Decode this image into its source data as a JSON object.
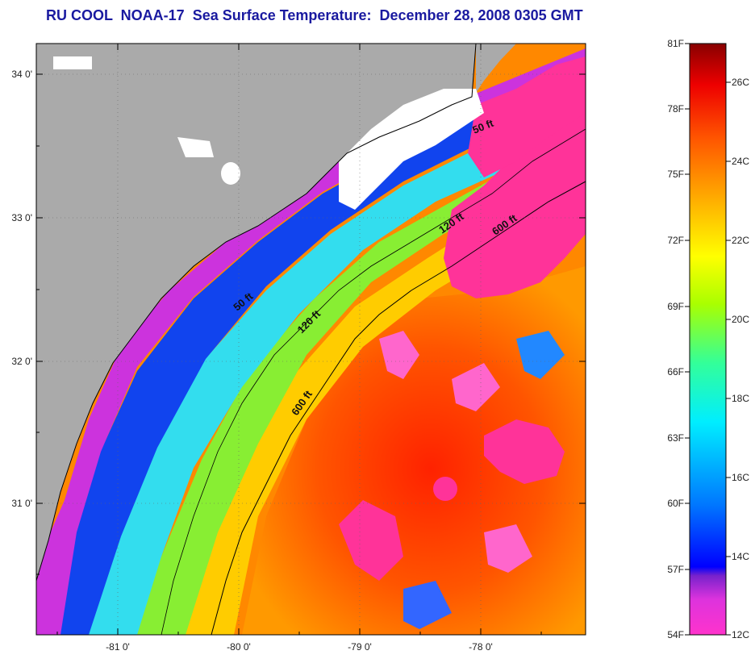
{
  "title": "RU COOL  NOAA-17  Sea Surface Temperature:  December 28, 2008 0305 GMT",
  "map": {
    "lat_ticks": [
      "34 0'",
      "33 0'",
      "32 0'",
      "31 0'"
    ],
    "lon_ticks": [
      "-81 0'",
      "-80 0'",
      "-79 0'",
      "-78 0'"
    ],
    "depth_labels": [
      "50 ft",
      "120 ft",
      "600 ft",
      "50 ft",
      "120 ft",
      "600 ft"
    ],
    "colors": {
      "land": "#aaaaaa",
      "cloud": "#ffffff",
      "coast": "#000000"
    }
  },
  "colorbar": {
    "f_labels": [
      "81F",
      "78F",
      "75F",
      "72F",
      "69F",
      "66F",
      "63F",
      "60F",
      "57F",
      "54F"
    ],
    "c_labels": [
      "26C",
      "24C",
      "22C",
      "20C",
      "18C",
      "16C",
      "14C",
      "12C"
    ],
    "stops": [
      "#ff33cc",
      "#cc33dd",
      "#7722cc",
      "#0000ff",
      "#0088ff",
      "#00eeff",
      "#33ffaa",
      "#aaff00",
      "#ffff00",
      "#ffaa00",
      "#ff5500",
      "#ee0000",
      "#880000"
    ]
  }
}
